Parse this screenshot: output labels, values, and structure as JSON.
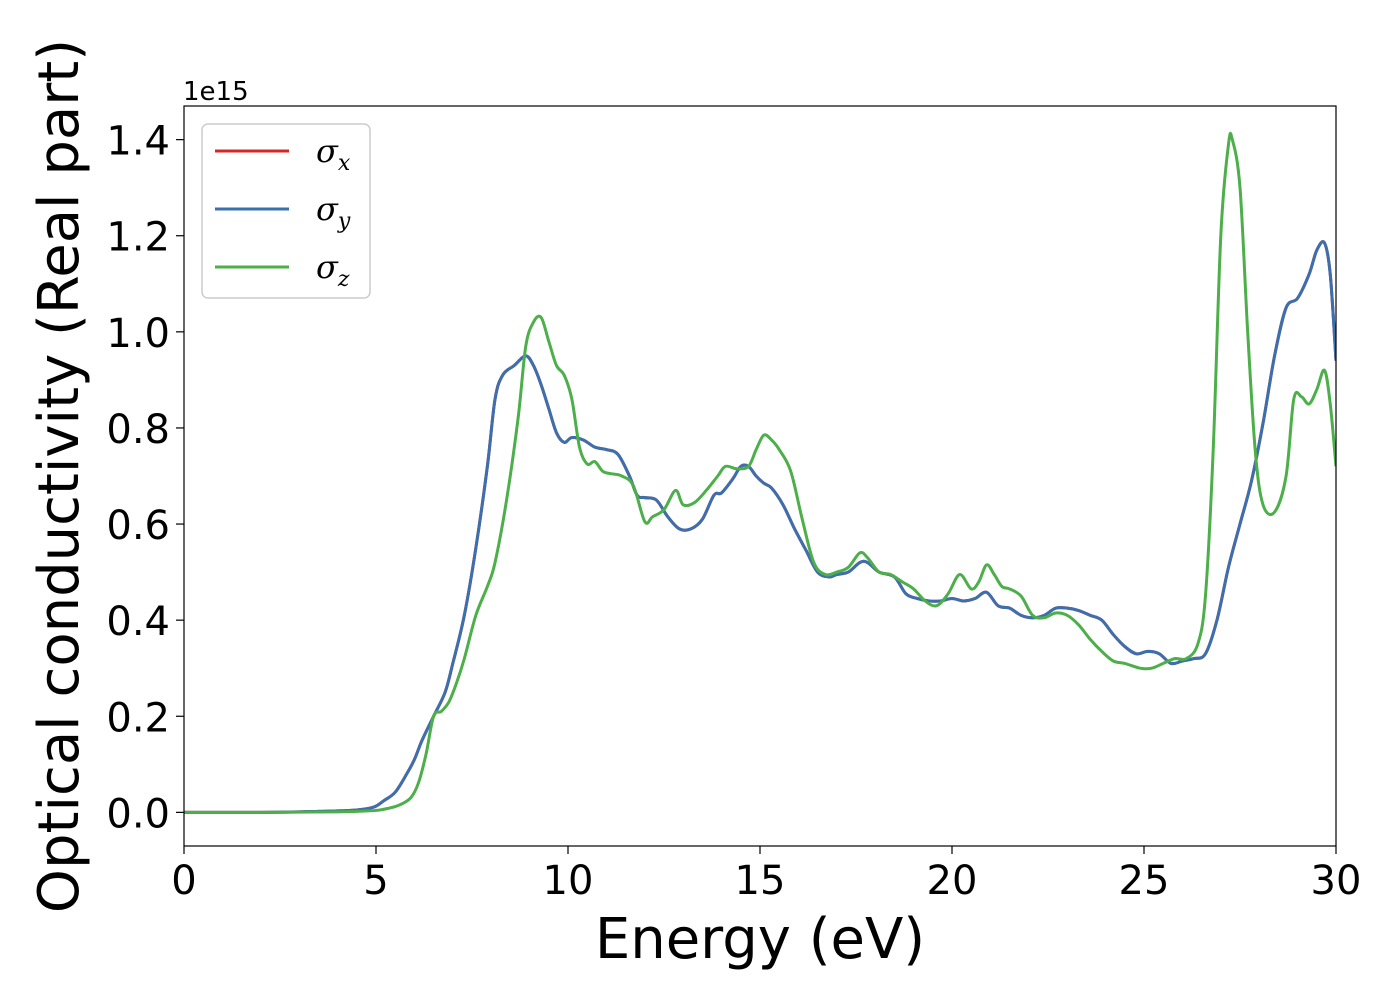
{
  "chart_data": {
    "type": "line",
    "xlabel": "Energy (eV)",
    "ylabel": "Optical conductivity (Real part)",
    "y_offset_text": "1e15",
    "xlim": [
      0,
      30
    ],
    "ylim": [
      -0.07,
      1.47
    ],
    "y_scale_factor": 1000000000000000.0,
    "x_ticks": [
      0,
      5,
      10,
      15,
      20,
      25,
      30
    ],
    "x_tick_labels": [
      "0",
      "5",
      "10",
      "15",
      "20",
      "25",
      "30"
    ],
    "y_ticks": [
      0.0,
      0.2,
      0.4,
      0.6,
      0.8,
      1.0,
      1.2,
      1.4
    ],
    "y_tick_labels": [
      "0.0",
      "0.2",
      "0.4",
      "0.6",
      "0.8",
      "1.0",
      "1.2",
      "1.4"
    ],
    "grid": false,
    "legend_position": "upper-left",
    "legend": [
      {
        "symbol": "σ",
        "sub": "x",
        "color": "#d62728"
      },
      {
        "symbol": "σ",
        "sub": "y",
        "color": "#3b6fad"
      },
      {
        "symbol": "σ",
        "sub": "z",
        "color": "#4daf4a"
      }
    ],
    "series": [
      {
        "name": "σx",
        "color": "#d62728",
        "x": [
          0,
          1,
          2,
          3,
          3.5,
          4,
          4.5,
          4.8,
          5.0,
          5.2,
          5.5,
          5.8,
          6.0,
          6.2,
          6.5,
          6.8,
          7.0,
          7.3,
          7.6,
          7.9,
          8.1,
          8.3,
          8.6,
          8.9,
          9.1,
          9.3,
          9.5,
          9.7,
          9.9,
          10.1,
          10.4,
          10.7,
          11.0,
          11.3,
          11.6,
          11.8,
          12.0,
          12.3,
          12.6,
          12.9,
          13.2,
          13.5,
          13.8,
          14.0,
          14.3,
          14.5,
          14.7,
          14.9,
          15.1,
          15.3,
          15.6,
          15.9,
          16.2,
          16.5,
          16.8,
          17.0,
          17.3,
          17.6,
          17.8,
          18.1,
          18.5,
          18.8,
          19.1,
          19.4,
          19.7,
          20.0,
          20.3,
          20.6,
          20.9,
          21.2,
          21.5,
          21.8,
          22.1,
          22.4,
          22.7,
          23.0,
          23.3,
          23.6,
          23.9,
          24.2,
          24.5,
          24.8,
          25.1,
          25.4,
          25.7,
          26.0,
          26.3,
          26.6,
          26.9,
          27.2,
          27.5,
          27.8,
          28.1,
          28.4,
          28.7,
          29.0,
          29.3,
          29.5,
          29.7,
          29.85,
          30
        ],
        "y": [
          0.0,
          0.0,
          0.0,
          0.001,
          0.002,
          0.003,
          0.005,
          0.008,
          0.013,
          0.024,
          0.042,
          0.08,
          0.11,
          0.15,
          0.2,
          0.25,
          0.31,
          0.41,
          0.55,
          0.72,
          0.86,
          0.91,
          0.93,
          0.95,
          0.93,
          0.89,
          0.84,
          0.79,
          0.77,
          0.78,
          0.775,
          0.76,
          0.755,
          0.745,
          0.7,
          0.66,
          0.655,
          0.65,
          0.615,
          0.59,
          0.59,
          0.61,
          0.66,
          0.665,
          0.695,
          0.72,
          0.72,
          0.7,
          0.685,
          0.675,
          0.64,
          0.59,
          0.545,
          0.5,
          0.49,
          0.495,
          0.5,
          0.52,
          0.52,
          0.5,
          0.49,
          0.455,
          0.445,
          0.44,
          0.44,
          0.445,
          0.44,
          0.445,
          0.458,
          0.43,
          0.425,
          0.41,
          0.405,
          0.41,
          0.425,
          0.425,
          0.42,
          0.41,
          0.4,
          0.37,
          0.345,
          0.33,
          0.335,
          0.33,
          0.31,
          0.315,
          0.32,
          0.33,
          0.4,
          0.51,
          0.6,
          0.69,
          0.81,
          0.95,
          1.05,
          1.07,
          1.12,
          1.17,
          1.185,
          1.12,
          0.94
        ]
      },
      {
        "name": "σy",
        "color": "#3b6fad",
        "x": [
          0,
          1,
          2,
          3,
          3.5,
          4,
          4.5,
          4.8,
          5.0,
          5.2,
          5.5,
          5.8,
          6.0,
          6.2,
          6.5,
          6.8,
          7.0,
          7.3,
          7.6,
          7.9,
          8.1,
          8.3,
          8.6,
          8.9,
          9.1,
          9.3,
          9.5,
          9.7,
          9.9,
          10.1,
          10.4,
          10.7,
          11.0,
          11.3,
          11.6,
          11.8,
          12.0,
          12.3,
          12.6,
          12.9,
          13.2,
          13.5,
          13.8,
          14.0,
          14.3,
          14.5,
          14.7,
          14.9,
          15.1,
          15.3,
          15.6,
          15.9,
          16.2,
          16.5,
          16.8,
          17.0,
          17.3,
          17.6,
          17.8,
          18.1,
          18.5,
          18.8,
          19.1,
          19.4,
          19.7,
          20.0,
          20.3,
          20.6,
          20.9,
          21.2,
          21.5,
          21.8,
          22.1,
          22.4,
          22.7,
          23.0,
          23.3,
          23.6,
          23.9,
          24.2,
          24.5,
          24.8,
          25.1,
          25.4,
          25.7,
          26.0,
          26.3,
          26.6,
          26.9,
          27.2,
          27.5,
          27.8,
          28.1,
          28.4,
          28.7,
          29.0,
          29.3,
          29.5,
          29.7,
          29.85,
          30
        ],
        "y": [
          0.0,
          0.0,
          0.0,
          0.001,
          0.002,
          0.003,
          0.005,
          0.008,
          0.013,
          0.024,
          0.042,
          0.08,
          0.11,
          0.15,
          0.2,
          0.25,
          0.31,
          0.41,
          0.55,
          0.72,
          0.86,
          0.91,
          0.93,
          0.95,
          0.93,
          0.89,
          0.84,
          0.79,
          0.77,
          0.78,
          0.775,
          0.76,
          0.755,
          0.745,
          0.7,
          0.66,
          0.655,
          0.65,
          0.615,
          0.59,
          0.59,
          0.61,
          0.66,
          0.665,
          0.695,
          0.72,
          0.72,
          0.7,
          0.685,
          0.675,
          0.64,
          0.59,
          0.545,
          0.5,
          0.49,
          0.495,
          0.5,
          0.52,
          0.52,
          0.5,
          0.49,
          0.455,
          0.445,
          0.44,
          0.44,
          0.445,
          0.44,
          0.445,
          0.458,
          0.43,
          0.425,
          0.41,
          0.405,
          0.41,
          0.425,
          0.425,
          0.42,
          0.41,
          0.4,
          0.37,
          0.345,
          0.33,
          0.335,
          0.33,
          0.31,
          0.315,
          0.32,
          0.33,
          0.4,
          0.51,
          0.6,
          0.69,
          0.81,
          0.95,
          1.05,
          1.07,
          1.12,
          1.17,
          1.185,
          1.12,
          0.94
        ]
      },
      {
        "name": "σz",
        "color": "#4daf4a",
        "x": [
          0,
          1,
          2,
          3,
          4,
          4.5,
          5.0,
          5.3,
          5.6,
          5.9,
          6.1,
          6.3,
          6.5,
          6.7,
          6.9,
          7.1,
          7.3,
          7.6,
          7.9,
          8.1,
          8.4,
          8.7,
          8.9,
          9.1,
          9.3,
          9.5,
          9.7,
          9.9,
          10.1,
          10.3,
          10.5,
          10.7,
          10.9,
          11.1,
          11.4,
          11.7,
          12.0,
          12.2,
          12.5,
          12.8,
          13.0,
          13.3,
          13.6,
          13.9,
          14.1,
          14.4,
          14.7,
          14.9,
          15.1,
          15.3,
          15.5,
          15.8,
          16.1,
          16.4,
          16.7,
          17.0,
          17.3,
          17.6,
          17.8,
          18.1,
          18.4,
          18.7,
          19.0,
          19.3,
          19.6,
          19.9,
          20.2,
          20.5,
          20.7,
          20.9,
          21.1,
          21.3,
          21.5,
          21.8,
          22.1,
          22.4,
          22.7,
          23.0,
          23.3,
          23.6,
          23.9,
          24.2,
          24.5,
          24.9,
          25.2,
          25.5,
          25.8,
          26.1,
          26.4,
          26.6,
          26.8,
          27.0,
          27.2,
          27.3,
          27.5,
          27.7,
          27.9,
          28.1,
          28.4,
          28.7,
          28.9,
          29.1,
          29.3,
          29.5,
          29.7,
          29.85,
          30
        ],
        "y": [
          0.0,
          0.0,
          0.0,
          0.0005,
          0.001,
          0.002,
          0.004,
          0.008,
          0.015,
          0.03,
          0.06,
          0.12,
          0.2,
          0.21,
          0.23,
          0.27,
          0.32,
          0.41,
          0.47,
          0.52,
          0.65,
          0.82,
          0.97,
          1.02,
          1.03,
          0.98,
          0.93,
          0.91,
          0.86,
          0.76,
          0.725,
          0.73,
          0.71,
          0.705,
          0.7,
          0.68,
          0.605,
          0.615,
          0.63,
          0.67,
          0.64,
          0.645,
          0.67,
          0.7,
          0.72,
          0.715,
          0.72,
          0.755,
          0.785,
          0.775,
          0.755,
          0.71,
          0.61,
          0.52,
          0.495,
          0.5,
          0.51,
          0.54,
          0.53,
          0.5,
          0.495,
          0.48,
          0.465,
          0.44,
          0.43,
          0.455,
          0.495,
          0.465,
          0.48,
          0.515,
          0.495,
          0.47,
          0.465,
          0.45,
          0.41,
          0.405,
          0.415,
          0.41,
          0.39,
          0.36,
          0.335,
          0.315,
          0.31,
          0.3,
          0.3,
          0.31,
          0.32,
          0.32,
          0.35,
          0.45,
          0.75,
          1.2,
          1.39,
          1.4,
          1.3,
          1.0,
          0.75,
          0.64,
          0.625,
          0.7,
          0.86,
          0.865,
          0.85,
          0.88,
          0.92,
          0.85,
          0.72
        ]
      }
    ]
  }
}
